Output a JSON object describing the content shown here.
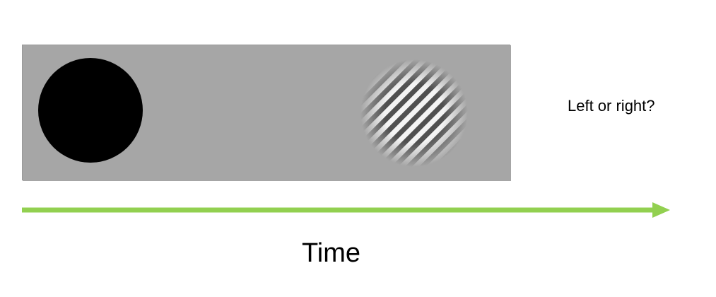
{
  "diagram": {
    "question": "Left or right?",
    "time_label": "Time"
  },
  "colors": {
    "panel_background": "#a6a6a6",
    "cue_circle": "#000000",
    "arrow": "#92d050",
    "grating_light": "#f4f4f4",
    "grating_dark": "#505050"
  },
  "icons": {
    "cue": "filled-circle-icon",
    "target": "gabor-patch-icon",
    "timeline": "right-arrow-icon"
  }
}
